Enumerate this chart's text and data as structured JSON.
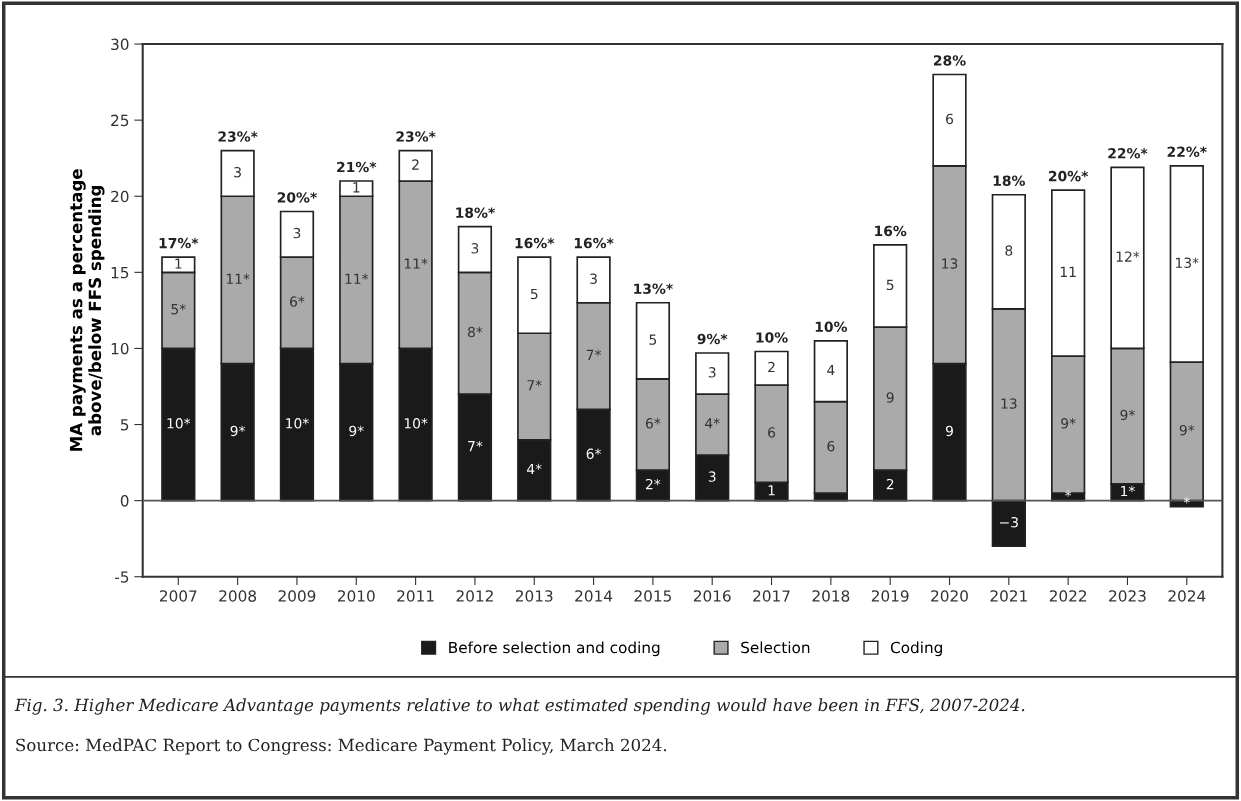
{
  "chart_data": {
    "type": "bar",
    "stacked": true,
    "ylabel": "MA payments as a percentage\nabove/below FFS spending",
    "categories": [
      "2007",
      "2008",
      "2009",
      "2010",
      "2011",
      "2012",
      "2013",
      "2014",
      "2015",
      "2016",
      "2017",
      "2018",
      "2019",
      "2020",
      "2021",
      "2022",
      "2023",
      "2024"
    ],
    "series": [
      {
        "name": "Before selection and coding",
        "color": "#1a1a1a",
        "values": [
          10,
          9,
          10,
          9,
          10,
          7,
          4,
          6,
          2,
          3,
          1.2,
          0.5,
          2,
          9,
          -3,
          0.5,
          1.1,
          -0.4
        ],
        "value_labels": [
          "10*",
          "9*",
          "10*",
          "9*",
          "10*",
          "7*",
          "4*",
          "6*",
          "2*",
          "3",
          "1",
          null,
          "2",
          "9",
          "−3",
          "*",
          "1*",
          "*"
        ]
      },
      {
        "name": "Selection",
        "color": "#aaaaaa",
        "values": [
          5,
          11,
          6,
          11,
          11,
          8,
          7,
          7,
          6,
          4,
          6.4,
          6,
          9.4,
          13,
          12.6,
          9,
          8.9,
          9.1
        ],
        "value_labels": [
          "5*",
          "11*",
          "6*",
          "11*",
          "11*",
          "8*",
          "7*",
          "7*",
          "6*",
          "4*",
          "6",
          "6",
          "9",
          "13",
          "13",
          "9*",
          "9*",
          "9*"
        ]
      },
      {
        "name": "Coding",
        "color": "#ffffff",
        "values": [
          1,
          3,
          3,
          1,
          2,
          3,
          5,
          3,
          5,
          2.7,
          2.2,
          4,
          5.4,
          6,
          7.5,
          10.9,
          11.9,
          12.9
        ],
        "value_labels": [
          "1",
          "3",
          "3",
          "1",
          "2",
          "3",
          "5",
          "3",
          "5",
          "3",
          "2",
          "4",
          "5",
          "6",
          "8",
          "11",
          "12*",
          "13*"
        ]
      }
    ],
    "totals": [
      "17%*",
      "23%*",
      "20%*",
      "21%*",
      "23%*",
      "18%*",
      "16%*",
      "16%*",
      "13%*",
      "9%*",
      "10%",
      "10%",
      "16%",
      "28%",
      "18%",
      "20%*",
      "22%*",
      "22%*"
    ],
    "ylim": [
      -5,
      30
    ],
    "yticks": [
      -5,
      0,
      5,
      10,
      15,
      20,
      25,
      30
    ],
    "ref_lines": [
      {
        "axis": "y",
        "value": 0,
        "color": "#555555"
      }
    ],
    "grid": false,
    "legend": "bottom",
    "annotations": [
      "Fig. 3. Higher Medicare Advantage payments relative to what estimated spending would have been in FFS, 2007-2024.",
      "Source: MedPAC Report to Congress: Medicare Payment Policy, March 2024."
    ]
  }
}
